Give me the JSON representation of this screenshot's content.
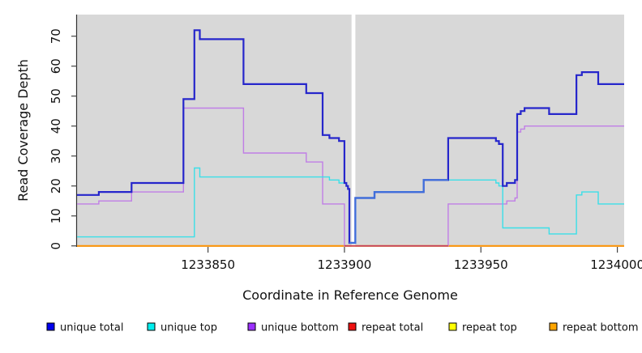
{
  "y_axis": {
    "title": "Read Coverage Depth",
    "ticks": [
      0,
      10,
      20,
      30,
      40,
      50,
      60,
      70
    ]
  },
  "x_axis": {
    "title": "Coordinate in Reference Genome",
    "ticks": [
      1233850,
      1233900,
      1233950,
      1234000
    ]
  },
  "legend": {
    "items": [
      {
        "label": "unique total",
        "color": "#0000ee"
      },
      {
        "label": "unique top",
        "color": "#00eeee"
      },
      {
        "label": "unique bottom",
        "color": "#9b30ff"
      },
      {
        "label": "repeat total",
        "color": "#ee1111"
      },
      {
        "label": "repeat top",
        "color": "#ffff00"
      },
      {
        "label": "repeat bottom",
        "color": "#ffa500"
      }
    ]
  },
  "chart_data": {
    "type": "line",
    "style": "step",
    "title": "",
    "xlabel": "Coordinate in Reference Genome",
    "ylabel": "Read Coverage Depth",
    "xlim": [
      1233802,
      1234002.5
    ],
    "ylim": [
      0,
      72
    ],
    "x_ticks": [
      1233850,
      1233900,
      1233950,
      1234000
    ],
    "y_ticks": [
      0,
      10,
      20,
      30,
      40,
      50,
      60,
      70
    ],
    "grid": false,
    "legend_position": "bottom",
    "plot_bg": "#d8d8d8",
    "gap_region": {
      "from": 1233902.6,
      "to": 1233904.0,
      "color": "#ffffff"
    },
    "draw_order": [
      "repeat top",
      "repeat bottom",
      "unique bottom",
      "repeat total",
      "unique top",
      "unique total"
    ],
    "series": [
      {
        "name": "unique total",
        "color": "#2626cb",
        "width": 2.2,
        "x": [
          1233802,
          1233810,
          1233822,
          1233841,
          1233845,
          1233847,
          1233863,
          1233886,
          1233892,
          1233894.5,
          1233898,
          1233900,
          1233900.7,
          1233901.3,
          1233901.8,
          1233904,
          1233911,
          1233929,
          1233938,
          1233955.5,
          1233956.6,
          1233958,
          1233959.5,
          1233962.5,
          1233963.3,
          1233964.6,
          1233966,
          1233975,
          1233985,
          1233987,
          1233993
        ],
        "v": [
          17,
          18,
          21,
          49,
          72,
          69,
          54,
          51,
          37,
          36,
          35,
          21,
          20,
          19,
          1,
          16,
          18,
          22,
          36,
          35,
          34,
          20,
          21,
          22,
          44,
          45,
          46,
          44,
          57,
          58,
          54
        ]
      },
      {
        "name": "unique top",
        "color": "#3adfe8",
        "width": 1.4,
        "x": [
          1233802,
          1233845,
          1233847,
          1233894.5,
          1233898,
          1233900.7,
          1233901.3,
          1233901.8,
          1233904,
          1233911,
          1233929,
          1233955.5,
          1233956.6,
          1233958,
          1233975,
          1233985,
          1233987,
          1233993
        ],
        "v": [
          3,
          26,
          23,
          22,
          21,
          20,
          19,
          1,
          16,
          18,
          22,
          21,
          20,
          6,
          4,
          17,
          18,
          14
        ]
      },
      {
        "name": "unique bottom",
        "color": "#c07ee6",
        "width": 1.4,
        "x": [
          1233802,
          1233810,
          1233822,
          1233841,
          1233863,
          1233886,
          1233892,
          1233900,
          1233938,
          1233959.5,
          1233962.5,
          1233963.3,
          1233964.6,
          1233966
        ],
        "v": [
          14,
          15,
          18,
          46,
          31,
          28,
          14,
          0,
          14,
          15,
          16,
          38,
          39,
          40
        ]
      },
      {
        "name": "repeat total",
        "color": "#c33a5e",
        "width": 1.7,
        "x": [
          1233802
        ],
        "v": [
          0
        ],
        "visible_range": [
          1233900,
          1233938
        ]
      },
      {
        "name": "repeat top",
        "color": "#f0e020",
        "width": 1.4,
        "x": [
          1233802
        ],
        "v": [
          0
        ]
      },
      {
        "name": "repeat bottom",
        "color": "#ff9300",
        "width": 2,
        "x": [
          1233802
        ],
        "v": [
          0
        ]
      }
    ],
    "overlap_highlight": {
      "from": 1233901.8,
      "to": 1233938,
      "color": "#3f6fdb"
    }
  }
}
